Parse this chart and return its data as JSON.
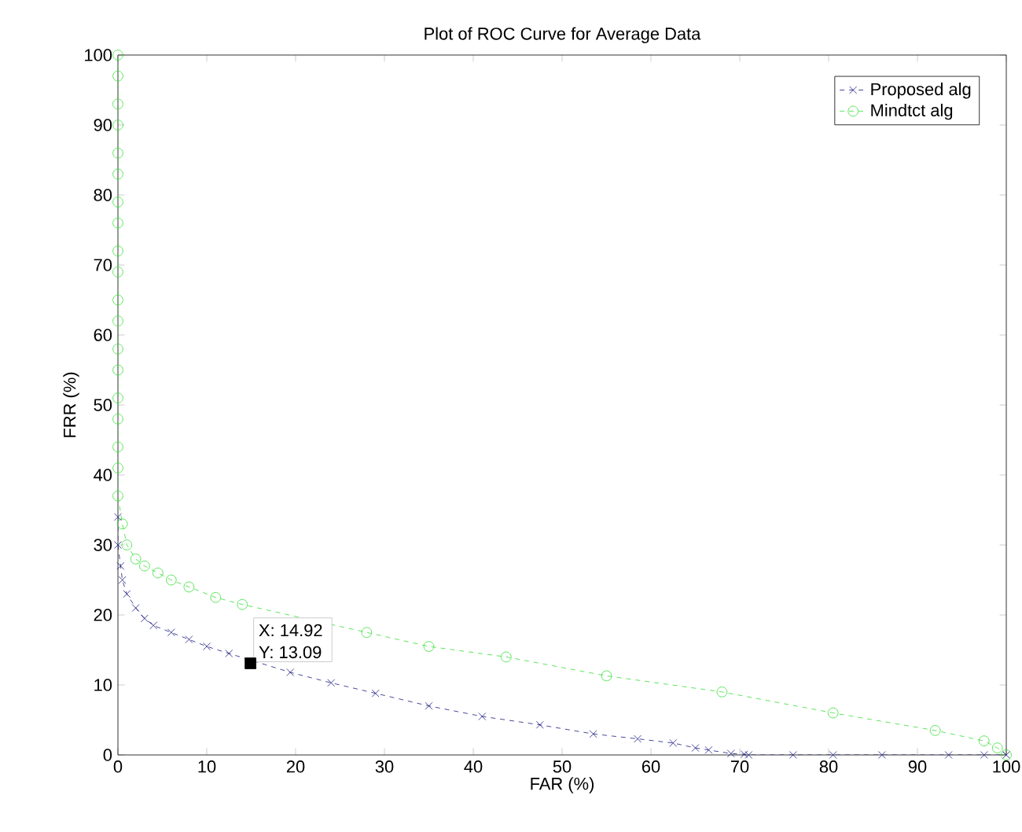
{
  "chart_data": {
    "type": "line",
    "title": "Plot of ROC Curve for Average Data",
    "xlabel": "FAR (%)",
    "ylabel": "FRR (%)",
    "xlim": [
      0,
      100
    ],
    "ylim": [
      0,
      100
    ],
    "xticks": [
      0,
      10,
      20,
      30,
      40,
      50,
      60,
      70,
      80,
      90,
      100
    ],
    "yticks": [
      0,
      10,
      20,
      30,
      40,
      50,
      60,
      70,
      80,
      90,
      100
    ],
    "grid": false,
    "legend": "top right",
    "line_style": "dashed",
    "series": [
      {
        "name": "Proposed alg",
        "color": "#1a1a80",
        "marker": "cross",
        "x": [
          0,
          0,
          0.3,
          0.5,
          1,
          2,
          3,
          4,
          6,
          8,
          10,
          12.5,
          19.4,
          24,
          29,
          35,
          41,
          47.5,
          53.5,
          58.5,
          62.5,
          65,
          66.5,
          69,
          70.5,
          71,
          76,
          80.5,
          86,
          93.5,
          97.5,
          100
        ],
        "values": [
          34,
          30,
          27,
          25,
          23,
          21,
          19.5,
          18.5,
          17.5,
          16.5,
          15.5,
          14.5,
          11.8,
          10.3,
          8.8,
          7,
          5.5,
          4.3,
          3,
          2.3,
          1.7,
          1,
          0.7,
          0.2,
          0.1,
          0,
          0,
          0,
          0,
          0,
          0,
          0
        ]
      },
      {
        "name": "Mindtct alg",
        "color": "#33dd33",
        "marker": "circle",
        "x": [
          0,
          0,
          0,
          0,
          0,
          0,
          0,
          0,
          0,
          0,
          0,
          0,
          0,
          0,
          0,
          0,
          0,
          0,
          0,
          0.5,
          1,
          2,
          3,
          4.5,
          6,
          8,
          11,
          14,
          28,
          35,
          43.7,
          55,
          68,
          80.5,
          92,
          97.5,
          99,
          100
        ],
        "values": [
          100,
          97,
          93,
          90,
          86,
          83,
          79,
          76,
          72,
          69,
          65,
          62,
          58,
          55,
          51,
          48,
          44,
          41,
          37,
          33,
          30,
          28,
          27,
          26,
          25,
          24,
          22.5,
          21.5,
          17.5,
          15.5,
          14,
          11.3,
          9,
          6,
          3.5,
          2,
          1,
          0
        ]
      }
    ],
    "annotations": [
      {
        "text": "X: 14.92",
        "x": 14.92,
        "y": 13.09
      },
      {
        "text": "Y: 13.09",
        "x": 14.92,
        "y": 13.09
      }
    ]
  }
}
